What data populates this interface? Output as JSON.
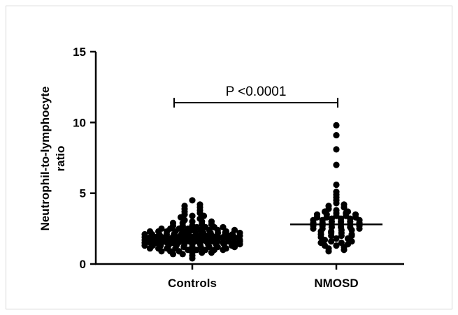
{
  "chart_data": {
    "type": "scatter",
    "title": "",
    "xlabel": "",
    "ylabel_lines": [
      "Neutrophil-to-lymphocyte",
      "ratio"
    ],
    "ylim": [
      0,
      15
    ],
    "yticks": [
      0,
      5,
      10,
      15
    ],
    "grid": false,
    "categories": [
      "Controls",
      "NMOSD"
    ],
    "annotation": "P <0.0001",
    "colors": {
      "points": "#000000",
      "axis": "#000000",
      "frame": "#d6d6d6"
    },
    "series": [
      {
        "category": "Controls",
        "median": 1.8,
        "values": [
          0.4,
          0.6,
          0.7,
          0.7,
          0.8,
          0.8,
          0.9,
          0.9,
          0.9,
          1.0,
          1.0,
          1.0,
          1.0,
          1.1,
          1.1,
          1.1,
          1.1,
          1.2,
          1.2,
          1.2,
          1.2,
          1.2,
          1.3,
          1.3,
          1.3,
          1.3,
          1.3,
          1.4,
          1.4,
          1.4,
          1.4,
          1.4,
          1.4,
          1.5,
          1.5,
          1.5,
          1.5,
          1.5,
          1.5,
          1.5,
          1.6,
          1.6,
          1.6,
          1.6,
          1.6,
          1.6,
          1.6,
          1.7,
          1.7,
          1.7,
          1.7,
          1.7,
          1.7,
          1.7,
          1.8,
          1.8,
          1.8,
          1.8,
          1.8,
          1.8,
          1.8,
          1.8,
          1.9,
          1.9,
          1.9,
          1.9,
          1.9,
          1.9,
          1.9,
          2.0,
          2.0,
          2.0,
          2.0,
          2.0,
          2.0,
          2.0,
          2.1,
          2.1,
          2.1,
          2.1,
          2.1,
          2.1,
          2.2,
          2.2,
          2.2,
          2.2,
          2.2,
          2.2,
          2.3,
          2.3,
          2.3,
          2.3,
          2.3,
          2.4,
          2.4,
          2.4,
          2.4,
          2.5,
          2.5,
          2.5,
          2.5,
          2.6,
          2.6,
          2.6,
          2.7,
          2.7,
          2.7,
          2.8,
          2.8,
          2.9,
          2.9,
          3.0,
          3.0,
          3.1,
          3.2,
          3.3,
          3.4,
          3.5,
          3.6,
          3.7,
          3.8,
          3.9,
          4.0,
          4.1,
          4.2,
          4.5,
          1.0,
          1.3,
          1.5,
          1.7,
          1.9,
          2.1,
          2.3,
          1.1,
          1.4,
          1.6,
          1.8,
          2.0,
          2.2,
          1.2,
          1.5,
          1.7,
          1.9,
          2.4,
          0.8,
          1.6,
          2.0,
          2.6,
          3.0,
          3.4
        ]
      },
      {
        "category": "NMOSD",
        "median": 2.8,
        "values": [
          0.9,
          1.0,
          1.1,
          1.2,
          1.3,
          1.3,
          1.4,
          1.5,
          1.6,
          1.7,
          1.8,
          1.9,
          2.0,
          2.1,
          2.2,
          2.3,
          2.3,
          2.4,
          2.5,
          2.5,
          2.6,
          2.6,
          2.7,
          2.7,
          2.8,
          2.8,
          2.8,
          2.9,
          2.9,
          3.0,
          3.0,
          3.1,
          3.1,
          3.2,
          3.2,
          3.3,
          3.3,
          3.4,
          3.4,
          3.5,
          3.5,
          3.6,
          3.7,
          3.8,
          3.9,
          4.0,
          4.1,
          4.3,
          4.5,
          4.7,
          4.9,
          5.1,
          5.6,
          7.0,
          8.1,
          9.1,
          9.8,
          1.5,
          1.8,
          2.0,
          2.2,
          2.4,
          2.6,
          3.0,
          3.2,
          3.6,
          1.6,
          2.1,
          2.5,
          2.9,
          3.3,
          3.7,
          2.0,
          2.7,
          3.1,
          3.5,
          4.2
        ]
      }
    ]
  }
}
